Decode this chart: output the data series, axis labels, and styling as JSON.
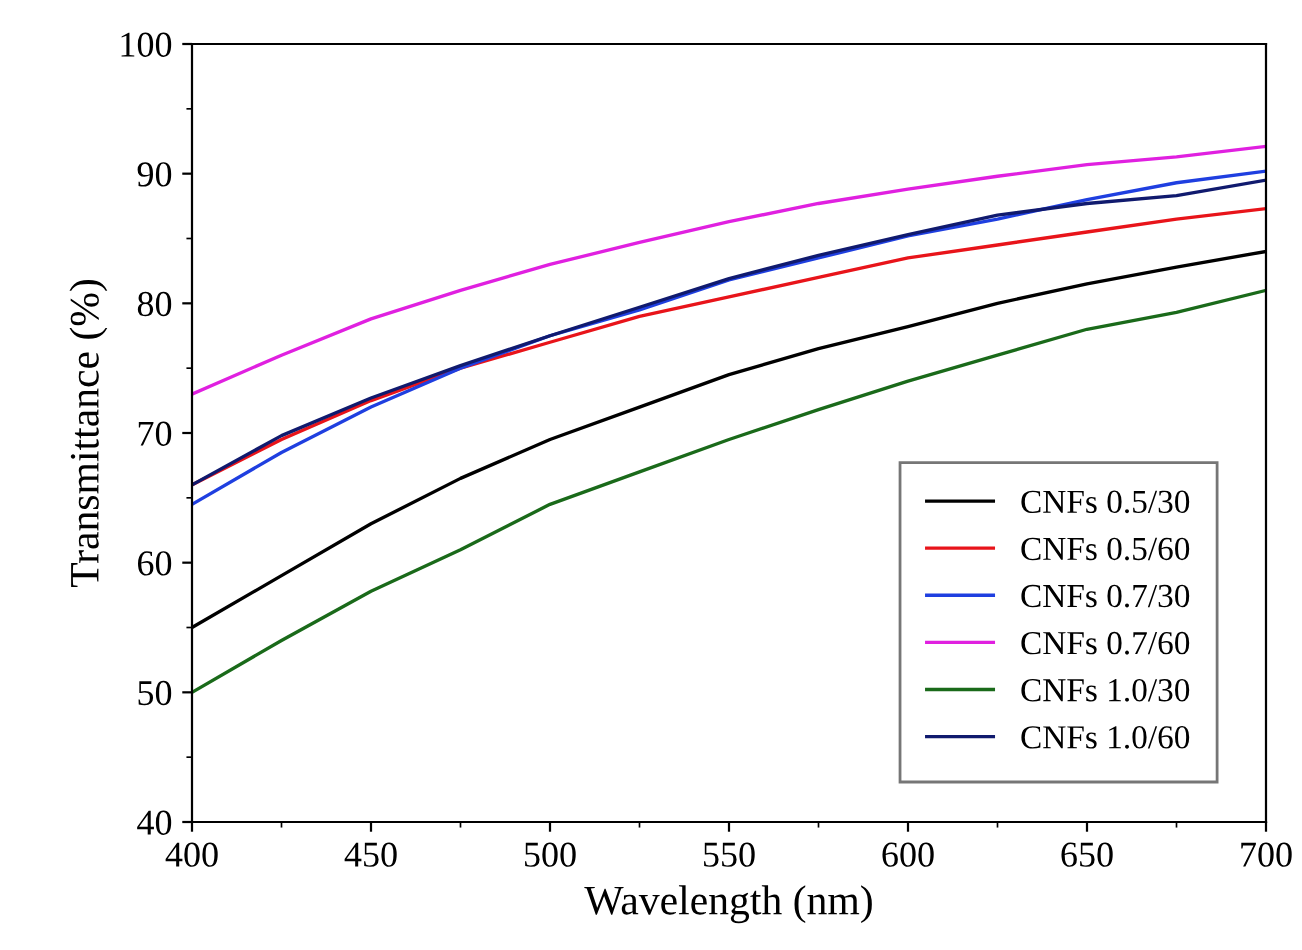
{
  "chart_data": {
    "type": "line",
    "xlabel": "Wavelength (nm)",
    "ylabel": "Transmittance (%)",
    "x": [
      400,
      425,
      450,
      475,
      500,
      525,
      550,
      575,
      600,
      625,
      650,
      675,
      700
    ],
    "xlim": [
      400,
      700
    ],
    "xticks": [
      400,
      450,
      500,
      550,
      600,
      650,
      700
    ],
    "ylim": [
      40,
      100
    ],
    "yticks": [
      40,
      50,
      60,
      70,
      80,
      90,
      100
    ],
    "grid": false,
    "legend": "bottom right",
    "marker": "none",
    "line_style": "solid",
    "series": [
      {
        "name": "CNFs 0.5/30",
        "color": "#000000",
        "values": [
          55,
          59,
          63,
          66.5,
          69.5,
          72,
          74.5,
          76.5,
          78.2,
          80,
          81.5,
          82.8,
          84
        ]
      },
      {
        "name": "CNFs 0.5/60",
        "color": "#e8141a",
        "values": [
          66,
          69.5,
          72.5,
          75,
          77,
          79,
          80.5,
          82,
          83.5,
          84.5,
          85.5,
          86.5,
          87.3
        ]
      },
      {
        "name": "CNFs 0.7/30",
        "color": "#1f3fe0",
        "values": [
          64.5,
          68.5,
          72,
          75,
          77.5,
          79.5,
          81.8,
          83.5,
          85.2,
          86.5,
          88,
          89.3,
          90.2
        ]
      },
      {
        "name": "CNFs 0.7/60",
        "color": "#e020e0",
        "values": [
          73,
          76,
          78.8,
          81,
          83,
          84.7,
          86.3,
          87.7,
          88.8,
          89.8,
          90.7,
          91.3,
          92.1
        ]
      },
      {
        "name": "CNFs 1.0/30",
        "color": "#1a6a1a",
        "values": [
          50,
          54,
          57.8,
          61,
          64.5,
          67,
          69.5,
          71.8,
          74,
          76,
          78,
          79.3,
          81
        ]
      },
      {
        "name": "CNFs 1.0/60",
        "color": "#101a6e",
        "values": [
          66,
          69.8,
          72.7,
          75.2,
          77.5,
          79.7,
          81.9,
          83.7,
          85.3,
          86.8,
          87.7,
          88.3,
          89.5
        ]
      }
    ]
  }
}
